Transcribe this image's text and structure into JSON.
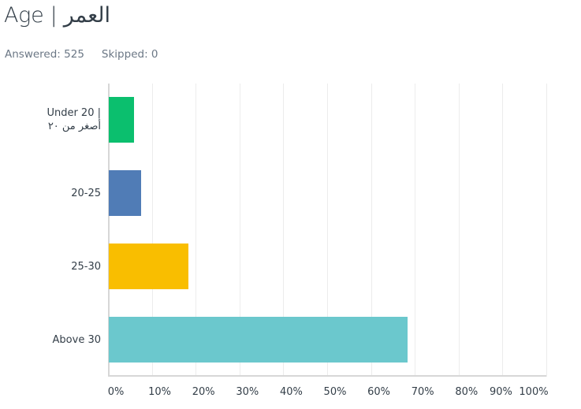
{
  "header": {
    "title": "Age | العمر",
    "answered": "Answered: 525",
    "skipped": "Skipped: 0"
  },
  "categories_display": [
    {
      "line1": "Under 20 |",
      "line2": "أصغر من ٢٠"
    },
    {
      "line1": "20-25",
      "line2": ""
    },
    {
      "line1": "25-30",
      "line2": ""
    },
    {
      "line1": "Above 30",
      "line2": ""
    }
  ],
  "ticks": [
    "0%",
    "10%",
    "20%",
    "30%",
    "40%",
    "50%",
    "60%",
    "70%",
    "80%",
    "90%",
    "100%"
  ],
  "colors": [
    "#0bbf6e",
    "#507cb6",
    "#f9be00",
    "#6bc8cd"
  ],
  "chart_data": {
    "type": "bar",
    "orientation": "horizontal",
    "title": "Age | العمر",
    "subtitle": "Answered: 525  Skipped: 0",
    "categories": [
      "Under 20 | أصغر من ٢٠",
      "20-25",
      "25-30",
      "Above 30"
    ],
    "values": [
      5.8,
      7.4,
      18.2,
      68.2
    ],
    "unit": "%",
    "xlabel": "",
    "ylabel": "",
    "xlim": [
      0,
      100
    ],
    "xticks": [
      "0%",
      "10%",
      "20%",
      "30%",
      "40%",
      "50%",
      "60%",
      "70%",
      "80%",
      "90%",
      "100%"
    ],
    "grid": true,
    "legend": false,
    "colors": [
      "#0bbf6e",
      "#507cb6",
      "#f9be00",
      "#6bc8cd"
    ]
  }
}
